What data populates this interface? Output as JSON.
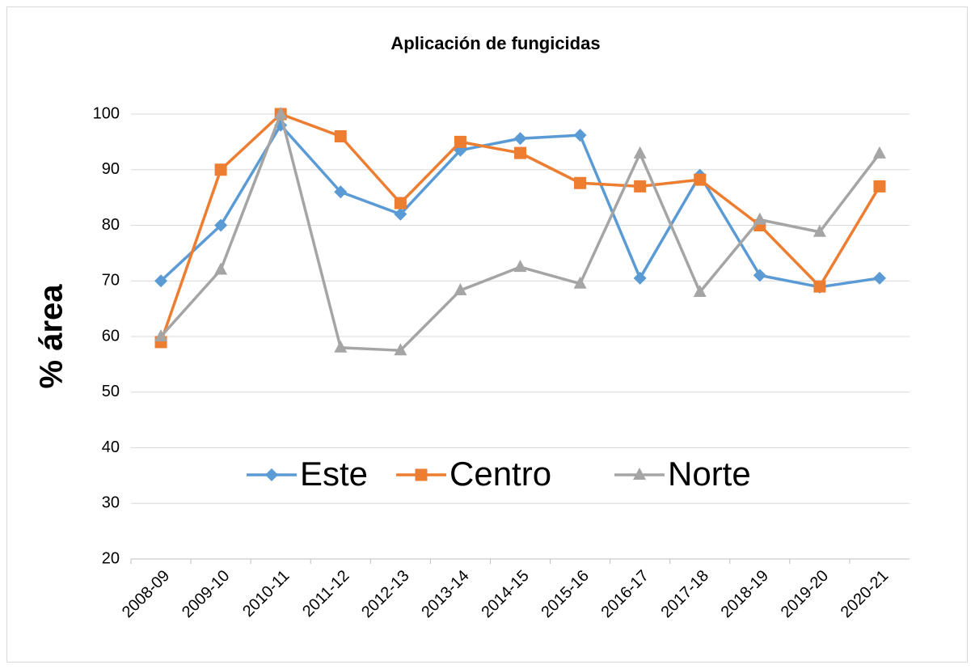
{
  "chart_data": {
    "type": "line",
    "title": "Aplicación de fungicidas",
    "y_label": "% área",
    "categories": [
      "2008-09",
      "2009-10",
      "2010-11",
      "2011-12",
      "2012-13",
      "2013-14",
      "2014-15",
      "2015-16",
      "2016-17",
      "2017-18",
      "2018-19",
      "2019-20",
      "2020-21"
    ],
    "series": [
      {
        "name": "Este",
        "color": "#5b9bd5",
        "marker": "diamond",
        "values": [
          70,
          80,
          98,
          86,
          82,
          93.5,
          95.6,
          96.2,
          70.5,
          89,
          71,
          68.9,
          70.5
        ]
      },
      {
        "name": "Centro",
        "color": "#ed7d31",
        "marker": "square",
        "values": [
          59,
          90,
          100,
          96,
          84,
          95,
          93,
          87.6,
          87,
          88.2,
          80,
          69,
          87
        ]
      },
      {
        "name": "Norte",
        "color": "#a5a5a5",
        "marker": "triangle",
        "values": [
          60,
          72,
          100,
          58,
          57.5,
          68.3,
          72.5,
          69.5,
          92.9,
          68,
          81,
          78.8,
          92.9
        ]
      }
    ],
    "ylim": [
      20,
      100
    ],
    "yticks": [
      20,
      30,
      40,
      50,
      60,
      70,
      80,
      90,
      100
    ],
    "grid": true,
    "legend": "center"
  }
}
